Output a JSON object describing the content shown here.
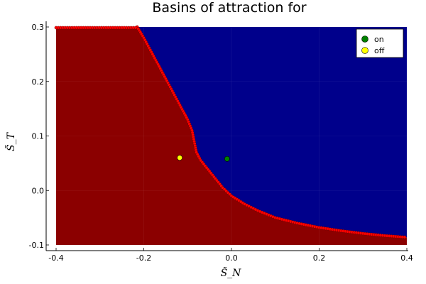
{
  "chart_data": {
    "type": "scatter",
    "title": "Basins of attraction for",
    "xlabel": "S̃_N",
    "ylabel": "S̃_T",
    "xlim": [
      -0.4,
      0.4
    ],
    "ylim": [
      -0.1,
      0.3
    ],
    "xticks": [
      -0.4,
      -0.2,
      0.0,
      0.2,
      0.4
    ],
    "xtick_labels": [
      "-0.4",
      "-0.2",
      "0.0",
      "0.2",
      "0.4"
    ],
    "yticks": [
      -0.1,
      0.0,
      0.1,
      0.2,
      0.3
    ],
    "ytick_labels": [
      "-0.1",
      "0.0",
      "0.1",
      "0.2",
      "0.3"
    ],
    "grid": true,
    "legend_position": "top-right",
    "regions": {
      "on_basin_color": "#00008b",
      "off_basin_color": "#8b0000",
      "boundary_color": "#ff0000"
    },
    "boundary": {
      "x": [
        -0.215,
        -0.2,
        -0.18,
        -0.16,
        -0.14,
        -0.12,
        -0.1,
        -0.09,
        -0.085,
        -0.08,
        -0.07,
        -0.06,
        -0.05,
        -0.04,
        -0.03,
        -0.02,
        0.0,
        0.03,
        0.06,
        0.1,
        0.15,
        0.2,
        0.25,
        0.3,
        0.35,
        0.4
      ],
      "y": [
        0.3,
        0.28,
        0.25,
        0.22,
        0.19,
        0.16,
        0.13,
        0.11,
        0.09,
        0.07,
        0.055,
        0.045,
        0.035,
        0.025,
        0.015,
        0.005,
        -0.01,
        -0.025,
        -0.037,
        -0.05,
        -0.06,
        -0.068,
        -0.074,
        -0.079,
        -0.083,
        -0.086
      ]
    },
    "series": [
      {
        "name": "on",
        "color": "#008000",
        "x": [
          -0.01
        ],
        "y": [
          0.058
        ]
      },
      {
        "name": "off",
        "color": "#ffff00",
        "x": [
          -0.118
        ],
        "y": [
          0.06
        ]
      }
    ]
  }
}
